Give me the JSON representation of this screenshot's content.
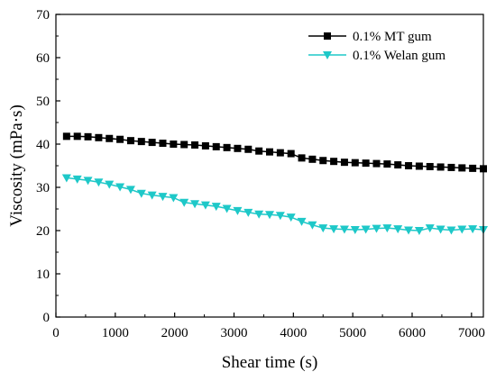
{
  "chart_data": {
    "type": "line",
    "xlabel": "Shear time (s)",
    "ylabel": "Viscosity (mPa·s)",
    "xlim": [
      0,
      7200
    ],
    "ylim": [
      0,
      70
    ],
    "xticks": [
      0,
      1000,
      2000,
      3000,
      4000,
      5000,
      6000,
      7000
    ],
    "yticks": [
      0,
      10,
      20,
      30,
      40,
      50,
      60,
      70
    ],
    "grid": false,
    "legend_position": "top-right",
    "series": [
      {
        "name": "0.1% MT gum",
        "marker": "square",
        "color": "#000000",
        "x": [
          180,
          360,
          540,
          720,
          900,
          1080,
          1260,
          1440,
          1620,
          1800,
          1980,
          2160,
          2340,
          2520,
          2700,
          2880,
          3060,
          3240,
          3420,
          3600,
          3780,
          3960,
          4140,
          4320,
          4500,
          4680,
          4860,
          5040,
          5220,
          5400,
          5580,
          5760,
          5940,
          6120,
          6300,
          6480,
          6660,
          6840,
          7020,
          7200
        ],
        "y": [
          41.8,
          41.8,
          41.7,
          41.5,
          41.3,
          41.1,
          40.8,
          40.6,
          40.4,
          40.2,
          40.0,
          39.9,
          39.8,
          39.6,
          39.4,
          39.2,
          39.0,
          38.8,
          38.4,
          38.2,
          38.0,
          37.8,
          36.8,
          36.5,
          36.2,
          36.0,
          35.8,
          35.7,
          35.6,
          35.5,
          35.4,
          35.2,
          35.0,
          34.9,
          34.8,
          34.7,
          34.6,
          34.5,
          34.4,
          34.3
        ]
      },
      {
        "name": "0.1% Welan gum",
        "marker": "triangle-down",
        "color": "#1ec8c8",
        "x": [
          180,
          360,
          540,
          720,
          900,
          1080,
          1260,
          1440,
          1620,
          1800,
          1980,
          2160,
          2340,
          2520,
          2700,
          2880,
          3060,
          3240,
          3420,
          3600,
          3780,
          3960,
          4140,
          4320,
          4500,
          4680,
          4860,
          5040,
          5220,
          5400,
          5580,
          5760,
          5940,
          6120,
          6300,
          6480,
          6660,
          6840,
          7020,
          7200
        ],
        "y": [
          32.2,
          31.9,
          31.6,
          31.2,
          30.7,
          30.1,
          29.5,
          28.6,
          28.2,
          27.9,
          27.6,
          26.5,
          26.2,
          25.9,
          25.6,
          25.1,
          24.6,
          24.2,
          23.8,
          23.7,
          23.5,
          23.1,
          22.1,
          21.3,
          20.6,
          20.4,
          20.3,
          20.2,
          20.3,
          20.5,
          20.6,
          20.4,
          20.1,
          20.0,
          20.6,
          20.3,
          20.1,
          20.3,
          20.4,
          20.2
        ]
      }
    ]
  }
}
